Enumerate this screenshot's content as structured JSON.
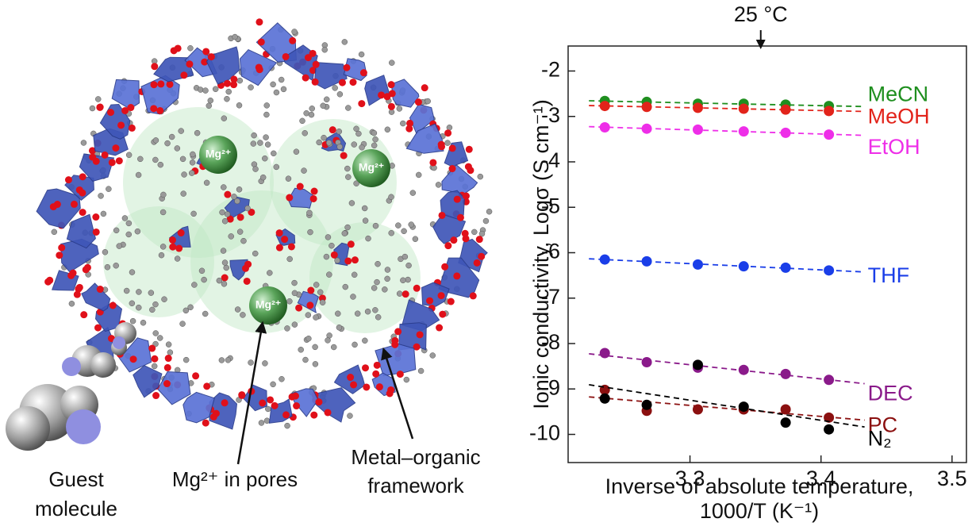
{
  "chart_data": {
    "type": "scatter",
    "y_label": "Ionic conductivity, Logσ (S cm⁻¹)",
    "x_label": [
      "Inverse of absolute temperature,",
      "1000/T (K⁻¹)"
    ],
    "annotation": {
      "text": "25 °C",
      "x": 3.354
    },
    "xlim": [
      3.207,
      3.511
    ],
    "xticks": [
      3.3,
      3.4,
      3.5
    ],
    "ylim": [
      -10.62,
      -1.45
    ],
    "yticks": [
      -2,
      -3,
      -4,
      -5,
      -6,
      -7,
      -8,
      -9,
      -10
    ],
    "x": [
      3.235,
      3.267,
      3.306,
      3.341,
      3.373,
      3.406
    ],
    "series": [
      {
        "name": "MeCN",
        "color": "#1f8f1f",
        "values": [
          -2.66,
          -2.68,
          -2.72,
          -2.72,
          -2.74,
          -2.77
        ]
      },
      {
        "name": "MeOH",
        "color": "#e2231a",
        "values": [
          -2.77,
          -2.79,
          -2.81,
          -2.83,
          -2.85,
          -2.88
        ]
      },
      {
        "name": "EtOH",
        "color": "#ee2ee8",
        "values": [
          -3.24,
          -3.27,
          -3.29,
          -3.33,
          -3.36,
          -3.4
        ]
      },
      {
        "name": "THF",
        "color": "#1a3ee8",
        "values": [
          -6.15,
          -6.19,
          -6.26,
          -6.3,
          -6.33,
          -6.39
        ]
      },
      {
        "name": "DEC",
        "color": "#8a1a8a",
        "values": [
          -8.21,
          -8.41,
          -8.53,
          -8.58,
          -8.67,
          -8.8
        ]
      },
      {
        "name": "PC",
        "color": "#8b1010",
        "values": [
          -9.02,
          -9.48,
          -9.45,
          -9.45,
          -9.45,
          -9.63
        ]
      },
      {
        "name": "N₂",
        "color": "#000000",
        "values": [
          -9.21,
          -9.35,
          -8.47,
          -9.39,
          -9.74,
          -9.89
        ]
      }
    ]
  },
  "illustration": {
    "sphere_label": "Mg²⁺",
    "guest_label": [
      "Guest",
      "molecule"
    ],
    "pores_label": "Mg²⁺ in pores",
    "framework_label": [
      "Metal–organic",
      "framework"
    ]
  }
}
